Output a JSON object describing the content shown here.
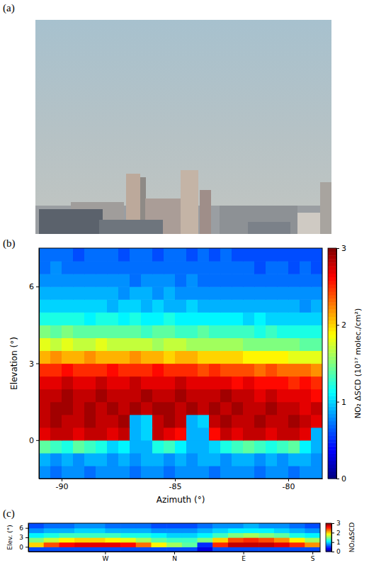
{
  "chart_data": [
    {
      "type": "image",
      "title": "(a)"
    },
    {
      "type": "heatmap",
      "title": "(b)",
      "color": "jet",
      "x_label": "Azimuth (°)",
      "y_label": "Elevation (°)",
      "x": [
        -90.75,
        -90.25,
        -89.75,
        -89.25,
        -88.75,
        -88.25,
        -87.75,
        -87.25,
        -86.75,
        -86.25,
        -85.75,
        -85.25,
        -84.75,
        -84.25,
        -83.75,
        -83.25,
        -82.75,
        -82.25,
        -81.75,
        -81.25,
        -80.75,
        -80.25,
        -79.75,
        -79.25,
        -78.75
      ],
      "y": [
        -1.25,
        -0.75,
        -0.25,
        0.25,
        0.75,
        1.25,
        1.75,
        2.25,
        2.75,
        3.25,
        3.75,
        4.25,
        4.75,
        5.25,
        5.75,
        6.25,
        6.75,
        7.25
      ],
      "values": [
        [
          0.8,
          0.7,
          0.8,
          0.8,
          0.7,
          0.8,
          0.8,
          0.8,
          0.7,
          0.8,
          0.8,
          0.7,
          0.8,
          0.8,
          0.8,
          0.7,
          0.8,
          0.8,
          0.8,
          0.7,
          0.8,
          0.8,
          0.7,
          0.8,
          0.8
        ],
        [
          0.9,
          0.8,
          0.9,
          0.8,
          0.9,
          0.9,
          0.8,
          0.9,
          0.8,
          0.9,
          0.9,
          0.8,
          0.9,
          0.8,
          0.9,
          0.9,
          0.8,
          0.9,
          0.9,
          0.8,
          0.9,
          0.8,
          0.9,
          0.9,
          0.8
        ],
        [
          1.4,
          1.3,
          1.2,
          1.4,
          1.3,
          1.2,
          1.0,
          1.1,
          0.9,
          0.9,
          1.2,
          1.3,
          1.1,
          0.9,
          0.9,
          1.0,
          1.2,
          1.3,
          1.4,
          1.3,
          1.2,
          1.3,
          1.4,
          1.1,
          0.9
        ],
        [
          2.7,
          2.8,
          2.8,
          2.7,
          2.8,
          2.8,
          2.7,
          2.8,
          0.9,
          1.0,
          2.8,
          2.7,
          2.6,
          0.9,
          0.9,
          2.6,
          2.8,
          2.7,
          2.8,
          2.8,
          2.7,
          2.8,
          2.8,
          2.7,
          0.9
        ],
        [
          2.8,
          2.9,
          2.8,
          2.8,
          2.9,
          2.8,
          2.8,
          2.9,
          0.9,
          1.0,
          2.8,
          2.9,
          2.8,
          0.9,
          1.0,
          2.8,
          2.9,
          2.8,
          2.8,
          2.9,
          2.8,
          2.8,
          2.9,
          2.8,
          2.7
        ],
        [
          2.8,
          2.9,
          2.9,
          2.8,
          2.9,
          2.8,
          2.9,
          2.8,
          2.9,
          2.8,
          2.9,
          2.9,
          2.8,
          2.9,
          2.8,
          2.9,
          2.8,
          2.9,
          2.8,
          2.8,
          2.9,
          2.8,
          2.8,
          2.7,
          2.8
        ],
        [
          2.8,
          2.8,
          2.9,
          2.8,
          2.8,
          2.9,
          2.8,
          2.8,
          2.8,
          2.9,
          2.8,
          2.8,
          2.9,
          2.8,
          2.8,
          2.8,
          2.9,
          2.8,
          2.8,
          2.7,
          2.8,
          2.7,
          2.7,
          2.7,
          2.6
        ],
        [
          2.7,
          2.7,
          2.8,
          2.7,
          2.7,
          2.8,
          2.7,
          2.7,
          2.8,
          2.7,
          2.7,
          2.7,
          2.8,
          2.7,
          2.7,
          2.7,
          2.7,
          2.6,
          2.7,
          2.6,
          2.6,
          2.6,
          2.5,
          2.6,
          2.5
        ],
        [
          2.5,
          2.5,
          2.6,
          2.5,
          2.5,
          2.5,
          2.6,
          2.5,
          2.5,
          2.5,
          2.6,
          2.5,
          2.5,
          2.5,
          2.4,
          2.5,
          2.4,
          2.4,
          2.4,
          2.3,
          2.4,
          2.3,
          2.3,
          2.3,
          2.2
        ],
        [
          2.1,
          2.2,
          2.1,
          2.1,
          2.2,
          2.1,
          2.1,
          2.1,
          2.2,
          2.1,
          2.1,
          2.0,
          2.1,
          2.1,
          2.0,
          2.0,
          2.0,
          2.0,
          1.9,
          1.9,
          1.9,
          1.9,
          1.8,
          1.8,
          1.8
        ],
        [
          1.8,
          1.7,
          1.8,
          1.7,
          1.7,
          1.8,
          1.7,
          1.7,
          1.7,
          1.7,
          1.6,
          1.7,
          1.7,
          1.6,
          1.6,
          1.6,
          1.6,
          1.6,
          1.5,
          1.5,
          1.5,
          1.5,
          1.5,
          1.4,
          1.4
        ],
        [
          1.5,
          1.4,
          1.5,
          1.4,
          1.4,
          1.4,
          1.4,
          1.4,
          1.4,
          1.3,
          1.4,
          1.4,
          1.3,
          1.3,
          1.4,
          1.3,
          1.3,
          1.3,
          1.3,
          1.2,
          1.3,
          1.2,
          1.2,
          1.2,
          1.2
        ],
        [
          1.2,
          1.2,
          1.2,
          1.2,
          1.1,
          1.2,
          1.2,
          1.1,
          1.2,
          1.1,
          1.1,
          1.2,
          1.1,
          1.1,
          1.1,
          1.1,
          1.1,
          1.1,
          1.0,
          1.1,
          1.0,
          1.0,
          1.0,
          1.0,
          1.0
        ],
        [
          1.0,
          1.0,
          1.0,
          1.0,
          1.0,
          1.0,
          0.9,
          1.0,
          1.0,
          0.9,
          1.0,
          0.9,
          0.9,
          1.0,
          0.9,
          0.9,
          0.9,
          0.9,
          0.9,
          0.9,
          0.9,
          0.9,
          0.9,
          0.8,
          0.9
        ],
        [
          0.9,
          0.9,
          0.9,
          0.9,
          0.9,
          0.9,
          0.9,
          0.8,
          0.9,
          0.9,
          0.8,
          0.9,
          0.8,
          0.8,
          0.8,
          0.8,
          0.8,
          0.8,
          0.8,
          0.8,
          0.8,
          0.8,
          0.8,
          0.8,
          0.8
        ],
        [
          0.8,
          0.8,
          0.8,
          0.8,
          0.8,
          0.8,
          0.8,
          0.8,
          0.7,
          0.8,
          0.8,
          0.8,
          0.7,
          0.8,
          0.7,
          0.7,
          0.7,
          0.7,
          0.7,
          0.7,
          0.7,
          0.7,
          0.7,
          0.7,
          0.7
        ],
        [
          0.7,
          0.8,
          0.7,
          0.7,
          0.7,
          0.7,
          0.7,
          0.7,
          0.7,
          0.7,
          0.7,
          0.7,
          0.7,
          0.7,
          0.7,
          0.7,
          0.7,
          0.7,
          0.7,
          0.6,
          0.7,
          0.7,
          0.6,
          0.7,
          0.6
        ],
        [
          0.7,
          0.7,
          0.7,
          0.6,
          0.7,
          0.7,
          0.7,
          0.6,
          0.7,
          0.7,
          0.6,
          0.7,
          0.7,
          0.6,
          0.7,
          0.6,
          0.7,
          0.6,
          0.6,
          0.6,
          0.6,
          0.6,
          0.6,
          0.6,
          0.6
        ]
      ],
      "xlim": [
        -91,
        -78.5
      ],
      "ylim": [
        -1.5,
        7.5
      ],
      "xticks": [
        -90,
        -85,
        -80
      ],
      "yticks": [
        0,
        3,
        6
      ],
      "colorbar": {
        "label": "NO₂ ΔSCD (10¹⁷ molec./cm²)",
        "range": [
          0,
          3
        ],
        "ticks": [
          0,
          1,
          2,
          3
        ]
      }
    },
    {
      "type": "heatmap",
      "title": "(c)",
      "color": "jet",
      "y_label": "Elev. (°)",
      "x": [
        -180,
        -160,
        -140,
        -120,
        -100,
        -80,
        -60,
        -40,
        -20,
        0,
        20,
        40,
        60,
        80,
        100,
        120,
        140,
        160,
        180
      ],
      "y": [
        -0.75,
        0.75,
        2.25,
        3.75,
        5.25,
        6.75
      ],
      "values": [
        [
          0.6,
          0.6,
          0.6,
          0.6,
          0.6,
          0.6,
          0.6,
          0.6,
          0.6,
          0.6,
          0.6,
          0.3,
          0.6,
          0.6,
          0.6,
          0.6,
          0.6,
          0.6,
          0.6
        ],
        [
          2.0,
          2.4,
          2.6,
          2.7,
          2.7,
          2.7,
          2.6,
          2.3,
          1.9,
          1.6,
          1.4,
          0.5,
          2.5,
          2.8,
          2.8,
          2.8,
          2.7,
          2.5,
          2.2
        ],
        [
          1.5,
          1.7,
          1.9,
          2.0,
          2.0,
          1.9,
          1.8,
          1.6,
          1.4,
          1.3,
          1.3,
          1.5,
          2.0,
          2.4,
          2.5,
          2.4,
          2.2,
          1.9,
          1.6
        ],
        [
          1.1,
          1.2,
          1.3,
          1.3,
          1.3,
          1.3,
          1.2,
          1.2,
          1.1,
          1.0,
          1.0,
          1.1,
          1.3,
          1.5,
          1.6,
          1.5,
          1.4,
          1.2,
          1.1
        ],
        [
          0.8,
          0.9,
          0.9,
          1.0,
          1.0,
          0.9,
          0.9,
          0.9,
          0.8,
          0.8,
          0.8,
          0.9,
          1.0,
          1.1,
          1.1,
          1.1,
          1.0,
          0.9,
          0.8
        ],
        [
          0.6,
          0.7,
          0.7,
          0.8,
          0.8,
          0.7,
          0.7,
          0.7,
          0.6,
          0.6,
          0.6,
          0.7,
          0.8,
          0.8,
          0.9,
          0.8,
          0.8,
          0.7,
          0.6
        ]
      ],
      "xlim": [
        -190,
        190
      ],
      "ylim": [
        -1.5,
        7.5
      ],
      "xticks": [
        {
          "value": -90,
          "label": "W"
        },
        {
          "value": 0,
          "label": "N"
        },
        {
          "value": 90,
          "label": "E"
        },
        {
          "value": 180,
          "label": "S"
        }
      ],
      "yticks": [
        0,
        3,
        6
      ],
      "colorbar": {
        "label": "NO₂ΔSCD",
        "range": [
          0,
          3
        ],
        "ticks": [
          0,
          1,
          2,
          3
        ]
      }
    }
  ]
}
